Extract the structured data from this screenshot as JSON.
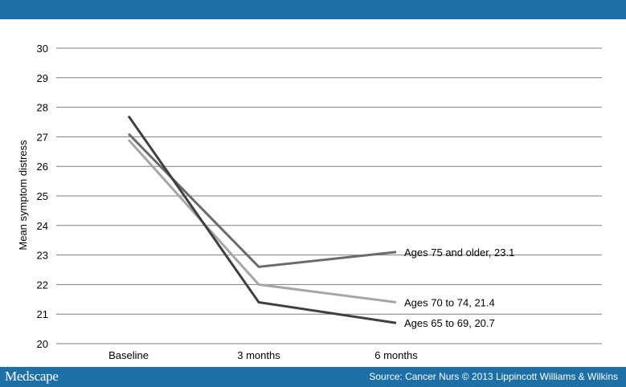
{
  "header": {},
  "footer": {
    "logo": "Medscape",
    "source": "Source: Cancer Nurs © 2013 Lippincott Williams & Wilkins"
  },
  "colors": {
    "bar": "#1d6fa5",
    "grid": "#7f7f7f"
  },
  "chart_data": {
    "type": "line",
    "title": "",
    "xlabel": "",
    "ylabel": "Mean symptom distress",
    "categories": [
      "Baseline",
      "3 months",
      "6 months"
    ],
    "ylim": [
      20,
      30
    ],
    "yticks": [
      20,
      21,
      22,
      23,
      24,
      25,
      26,
      27,
      28,
      29,
      30
    ],
    "grid": true,
    "series": [
      {
        "name": "Ages 75 and older, 23.1",
        "values": [
          27.1,
          22.6,
          23.1
        ],
        "color": "#6b6b6b"
      },
      {
        "name": "Ages 70 to 74, 21.4",
        "values": [
          26.9,
          22.0,
          21.4
        ],
        "color": "#a6a6a6"
      },
      {
        "name": "Ages 65 to 69, 20.7",
        "values": [
          27.7,
          21.4,
          20.7
        ],
        "color": "#404040"
      }
    ]
  }
}
